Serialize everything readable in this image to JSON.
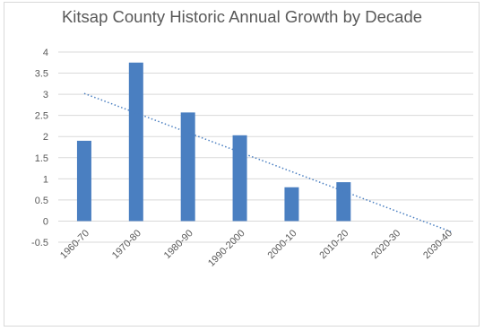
{
  "chart_data": {
    "type": "bar",
    "title": "Kitsap County Historic Annual Growth by Decade",
    "categories": [
      "1960-70",
      "1970-80",
      "1980-90",
      "1990-2000",
      "2000-10",
      "2010-20",
      "2020-30",
      "2030-40"
    ],
    "values": [
      1.9,
      3.75,
      2.57,
      2.03,
      0.8,
      0.92,
      null,
      null
    ],
    "ylim": [
      -0.5,
      4
    ],
    "yticks": [
      "-0.5",
      "0",
      "0.5",
      "1",
      "1.5",
      "2",
      "2.5",
      "3",
      "3.5",
      "4"
    ],
    "grid": true,
    "trendline": {
      "type": "linear",
      "style": "dotted",
      "start": {
        "x": "1960-70",
        "y": 3.02
      },
      "end_y": -0.25
    },
    "colors": {
      "bar": "#4a7fc1",
      "trendline": "#4a7fc1",
      "grid": "#d9d9d9",
      "axis": "#d9d9d9",
      "text": "#595959"
    }
  }
}
